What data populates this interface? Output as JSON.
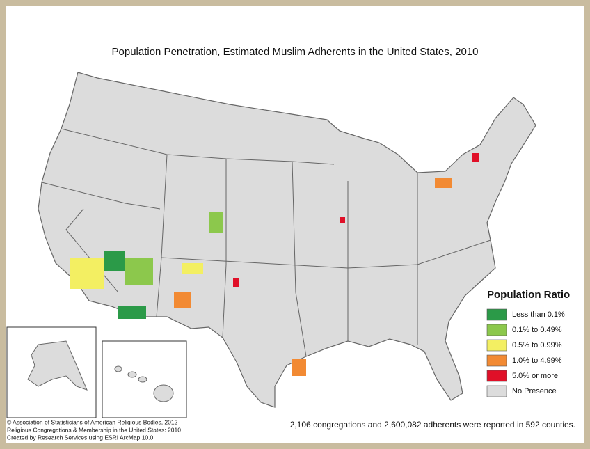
{
  "title": "Population Penetration, Estimated Muslim Adherents in the United States, 2010",
  "legend": {
    "title": "Population Ratio",
    "items": [
      {
        "label": "Less than 0.1%",
        "color": "#2b9a48"
      },
      {
        "label": "0.1% to 0.49%",
        "color": "#8cc84c"
      },
      {
        "label": "0.5% to 0.99%",
        "color": "#f3ef62"
      },
      {
        "label": "1.0% to 4.99%",
        "color": "#f28a33"
      },
      {
        "label": "5.0% or more",
        "color": "#e01028"
      },
      {
        "label": "No Presence",
        "color": "#dcdcdc"
      }
    ]
  },
  "footnote": "2,106 congregations and 2,600,082 adherents were reported in 592 counties.",
  "credits": [
    "© Association of Statisticians of American Religious Bodies, 2012",
    "Religious Congregations & Membership in the United States: 2010",
    "Created by Research Services using ESRI ArcMap 10.0"
  ]
}
